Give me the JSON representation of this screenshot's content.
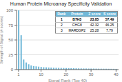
{
  "chart_data": {
    "type": "bar",
    "title": "Human Protein Microarray Specificity Validation",
    "x_label": "Signal Rank (Top 40)",
    "y_label": "Strength of Signal (# scores)",
    "x": [
      1,
      2,
      3,
      4,
      5,
      6,
      7,
      8,
      9,
      10,
      11,
      12,
      13,
      14,
      15,
      16,
      17,
      18,
      19,
      20,
      21,
      22,
      23,
      24,
      25,
      26,
      27,
      28,
      29,
      30,
      31,
      32,
      33,
      34,
      35,
      36,
      37,
      38,
      39,
      40
    ],
    "values": [
      100,
      58,
      17,
      12,
      9,
      7,
      6,
      5.5,
      5,
      4.5,
      4,
      3.8,
      3.5,
      3.3,
      3.1,
      3,
      2.9,
      2.8,
      2.7,
      2.6,
      2.5,
      2.4,
      2.3,
      2.2,
      2.1,
      2.0,
      1.9,
      1.85,
      1.8,
      1.75,
      1.7,
      1.65,
      1.6,
      1.55,
      1.5,
      1.45,
      1.4,
      1.35,
      1.3,
      1.25
    ],
    "color": "#70b8d8",
    "xlim": [
      0.2,
      41
    ],
    "xticks": [
      1,
      10,
      20,
      30,
      40
    ],
    "ylim": [
      0,
      100
    ],
    "yticks": [
      0,
      25,
      50,
      75,
      100
    ],
    "grid": true,
    "table": {
      "headers": [
        "Rank",
        "Protein",
        "Z score",
        "S score"
      ],
      "rows": [
        [
          "1",
          "B7H3",
          "23.85",
          "57.49"
        ],
        [
          "2",
          "CHG8",
          "42.32",
          "46.25"
        ],
        [
          "3",
          "MARDGP2",
          "25.28",
          "7.79"
        ]
      ]
    }
  }
}
